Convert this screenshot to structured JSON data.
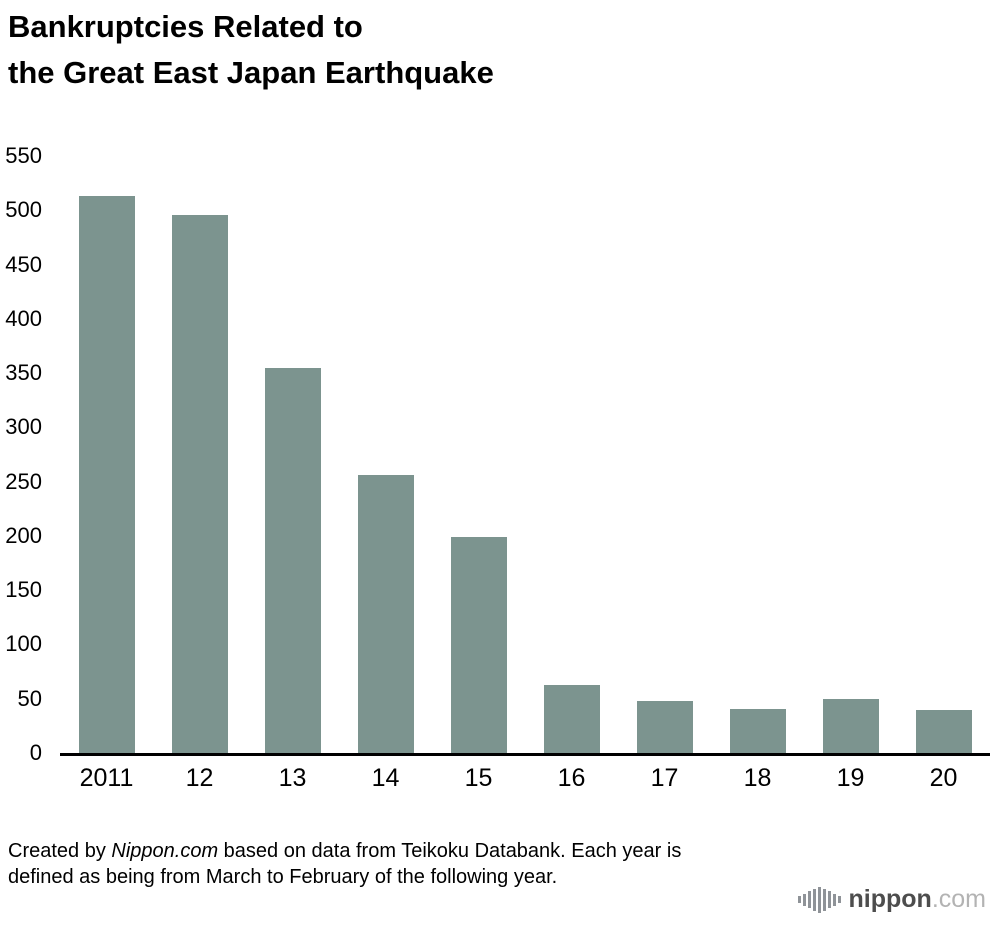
{
  "title": {
    "line1": "Bankruptcies Related to",
    "line2": "the Great East Japan Earthquake"
  },
  "chart_data": {
    "type": "bar",
    "title": "Bankruptcies Related to the Great East Japan Earthquake",
    "categories": [
      "2011",
      "12",
      "13",
      "14",
      "15",
      "16",
      "17",
      "18",
      "19",
      "20"
    ],
    "values": [
      513,
      496,
      355,
      256,
      199,
      63,
      48,
      41,
      50,
      40
    ],
    "xlabel": "",
    "ylabel": "",
    "ylim": [
      0,
      550
    ],
    "ytick_step": 50,
    "bar_color": "#7c948f",
    "axis_color": "#000000",
    "grid": false,
    "legend": false
  },
  "footer": {
    "prefix": "Created by ",
    "brand": "Nippon.com",
    "suffix": " based on data from Teikoku Databank. Each year is defined as being from March to February of the following year."
  },
  "logo": {
    "brand": "nippon",
    "tld": ".com"
  }
}
